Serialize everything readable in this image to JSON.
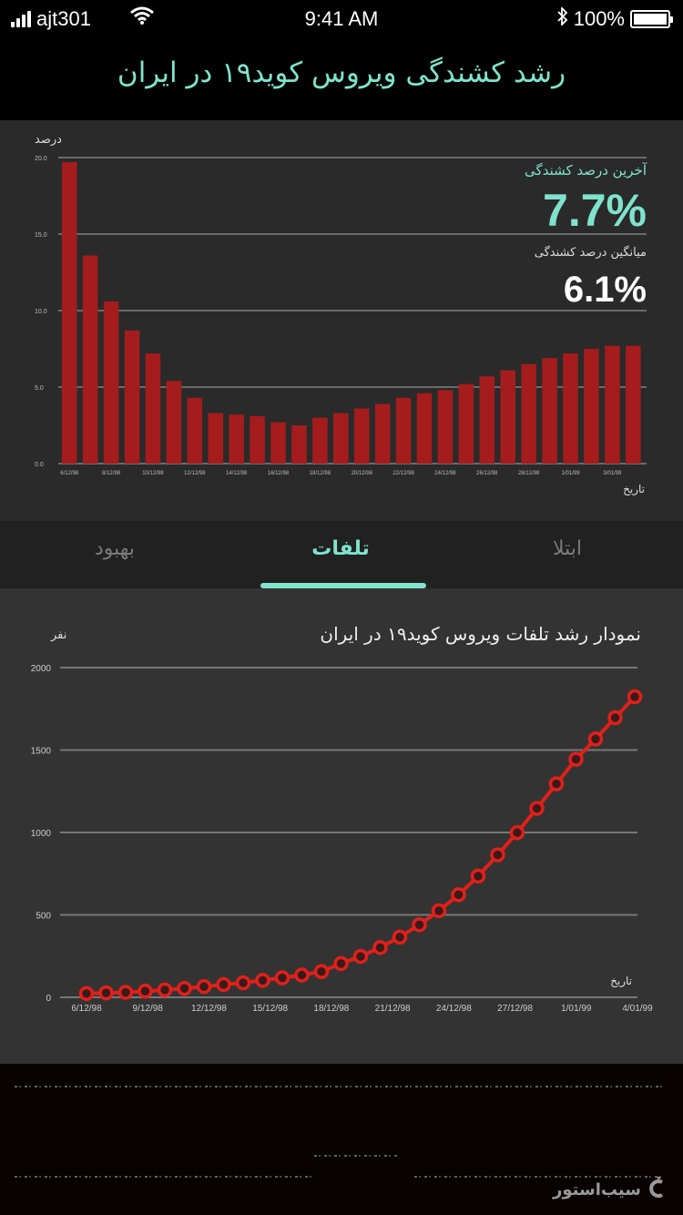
{
  "status_bar": {
    "carrier": "ajt301",
    "time": "9:41 AM",
    "battery": "100%",
    "icons": [
      "signal-icon",
      "wifi-icon",
      "bluetooth-icon",
      "battery-icon"
    ]
  },
  "header": {
    "title": "رشد کشندگی ویروس کوید۱۹ در ایران"
  },
  "bar_panel": {
    "y_axis_unit": "درصد",
    "x_axis_label": "تاریخ",
    "latest_label": "آخرین درصد کشندگی",
    "latest_value": "7.7%",
    "average_label": "میانگین درصد کشندگی",
    "average_value": "6.1%",
    "colors": {
      "bar": "#a51c1c",
      "accent": "#7fe3cc",
      "grid": "#6a6a6a"
    }
  },
  "tabs": {
    "items": [
      {
        "label": "ابتلا",
        "active": false
      },
      {
        "label": "تلفات",
        "active": true
      },
      {
        "label": "بهبود",
        "active": false
      }
    ]
  },
  "line_panel": {
    "title": "نمودار رشد تلفات ویروس کوید۱۹ در ایران",
    "y_axis_unit": "نفر",
    "x_axis_label": "تاریخ",
    "colors": {
      "line": "#e0201a",
      "grid": "#777777"
    }
  },
  "footer": {
    "watermark": "سیب‌استور",
    "watermark_icon": "apple-logo-icon"
  },
  "chart_data": [
    {
      "type": "bar",
      "title": "رشد کشندگی ویروس کوید۱۹ در ایران",
      "xlabel": "تاریخ",
      "ylabel": "درصد",
      "ylim": [
        0,
        20
      ],
      "yticks": [
        "0.0",
        "5.0",
        "10.0",
        "15.0",
        "20.0"
      ],
      "x_tick_labels": [
        "6/12/98",
        "8/12/98",
        "10/12/98",
        "12/12/98",
        "14/12/98",
        "16/12/98",
        "18/12/98",
        "20/12/98",
        "22/12/98",
        "24/12/98",
        "26/12/98",
        "28/12/98",
        "1/01/99",
        "3/01/99"
      ],
      "categories": [
        "6/12/98",
        "7/12/98",
        "8/12/98",
        "9/12/98",
        "10/12/98",
        "11/12/98",
        "12/12/98",
        "13/12/98",
        "14/12/98",
        "15/12/98",
        "16/12/98",
        "17/12/98",
        "18/12/98",
        "19/12/98",
        "20/12/98",
        "21/12/98",
        "22/12/98",
        "23/12/98",
        "24/12/98",
        "25/12/98",
        "26/12/98",
        "27/12/98",
        "28/12/98",
        "29/12/98",
        "1/01/99",
        "2/01/99",
        "3/01/99",
        "4/01/99"
      ],
      "values": [
        19.7,
        13.6,
        10.6,
        8.7,
        7.2,
        5.4,
        4.3,
        3.3,
        3.2,
        3.1,
        2.7,
        2.5,
        3.0,
        3.3,
        3.6,
        3.9,
        4.3,
        4.6,
        4.8,
        5.2,
        5.7,
        6.1,
        6.5,
        6.9,
        7.2,
        7.5,
        7.7,
        7.7
      ],
      "annotations": {
        "latest": "7.7%",
        "average": "6.1%"
      },
      "grid": true
    },
    {
      "type": "line",
      "title": "نمودار رشد تلفات ویروس کوید۱۹ در ایران",
      "xlabel": "تاریخ",
      "ylabel": "نفر",
      "ylim": [
        0,
        2000
      ],
      "yticks": [
        "0",
        "500",
        "1000",
        "1500",
        "2000"
      ],
      "x_tick_labels": [
        "6/12/98",
        "9/12/98",
        "12/12/98",
        "15/12/98",
        "18/12/98",
        "21/12/98",
        "24/12/98",
        "27/12/98",
        "1/01/99",
        "4/01/99"
      ],
      "values": [
        12,
        16,
        19,
        26,
        34,
        43,
        54,
        66,
        77,
        92,
        107,
        124,
        145,
        194,
        237,
        291,
        354,
        429,
        514,
        611,
        724,
        853,
        988,
        1135,
        1284,
        1433,
        1556,
        1685,
        1812
      ],
      "grid": true
    }
  ]
}
